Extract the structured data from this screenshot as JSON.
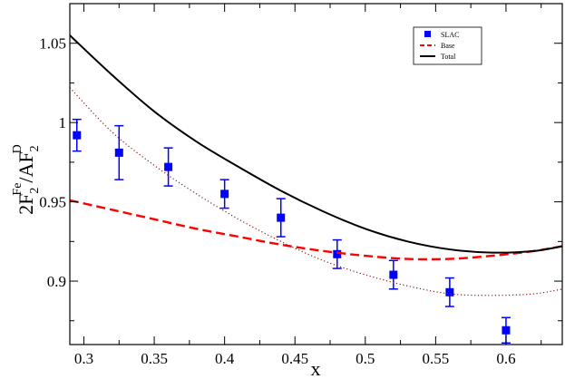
{
  "chart_data": {
    "type": "line",
    "title": "",
    "xlabel": "x",
    "ylabel_parts": [
      "2F",
      "2",
      "Fe",
      "/AF",
      "2",
      "D"
    ],
    "xlim": [
      0.29,
      0.64
    ],
    "ylim": [
      0.86,
      1.075
    ],
    "xticks": [
      0.3,
      0.35,
      0.4,
      0.45,
      0.5,
      0.55,
      0.6
    ],
    "xtick_labels": [
      "0.3",
      "0.35",
      "0.4",
      "0.45",
      "0.5",
      "0.55",
      "0.6"
    ],
    "yticks": [
      0.9,
      0.95,
      1.0,
      1.05
    ],
    "ytick_labels": [
      "0.9",
      "0.95",
      "1",
      "1.05"
    ],
    "grid": false,
    "legend_position": "top-right",
    "series": [
      {
        "name": "SLAC",
        "kind": "scatter-errorbar",
        "color": "#0000ff",
        "x": [
          0.295,
          0.325,
          0.36,
          0.4,
          0.44,
          0.48,
          0.52,
          0.56,
          0.6
        ],
        "y": [
          0.992,
          0.981,
          0.972,
          0.955,
          0.94,
          0.917,
          0.904,
          0.893,
          0.869
        ],
        "err": [
          0.01,
          0.017,
          0.012,
          0.009,
          0.012,
          0.009,
          0.009,
          0.009,
          0.008
        ]
      },
      {
        "name": "Base",
        "kind": "line",
        "style": "dashed",
        "color": "#ff0000",
        "x": [
          0.29,
          0.32,
          0.35,
          0.38,
          0.41,
          0.44,
          0.47,
          0.5,
          0.53,
          0.56,
          0.59,
          0.62,
          0.64
        ],
        "y": [
          0.951,
          0.945,
          0.939,
          0.933,
          0.928,
          0.923,
          0.919,
          0.916,
          0.914,
          0.914,
          0.916,
          0.919,
          0.922
        ]
      },
      {
        "name": "Total",
        "kind": "line",
        "style": "solid",
        "color": "#000000",
        "x": [
          0.29,
          0.32,
          0.35,
          0.38,
          0.41,
          0.44,
          0.47,
          0.5,
          0.53,
          0.56,
          0.59,
          0.62,
          0.64
        ],
        "y": [
          1.055,
          1.03,
          1.007,
          0.988,
          0.972,
          0.957,
          0.944,
          0.933,
          0.925,
          0.92,
          0.918,
          0.919,
          0.922
        ]
      },
      {
        "name": "",
        "kind": "line",
        "style": "dotted",
        "color": "#8b1a1a",
        "x": [
          0.29,
          0.32,
          0.35,
          0.38,
          0.41,
          0.44,
          0.47,
          0.5,
          0.53,
          0.56,
          0.59,
          0.62,
          0.64
        ],
        "y": [
          1.022,
          0.994,
          0.973,
          0.955,
          0.939,
          0.925,
          0.913,
          0.904,
          0.897,
          0.892,
          0.891,
          0.892,
          0.895
        ]
      }
    ]
  }
}
